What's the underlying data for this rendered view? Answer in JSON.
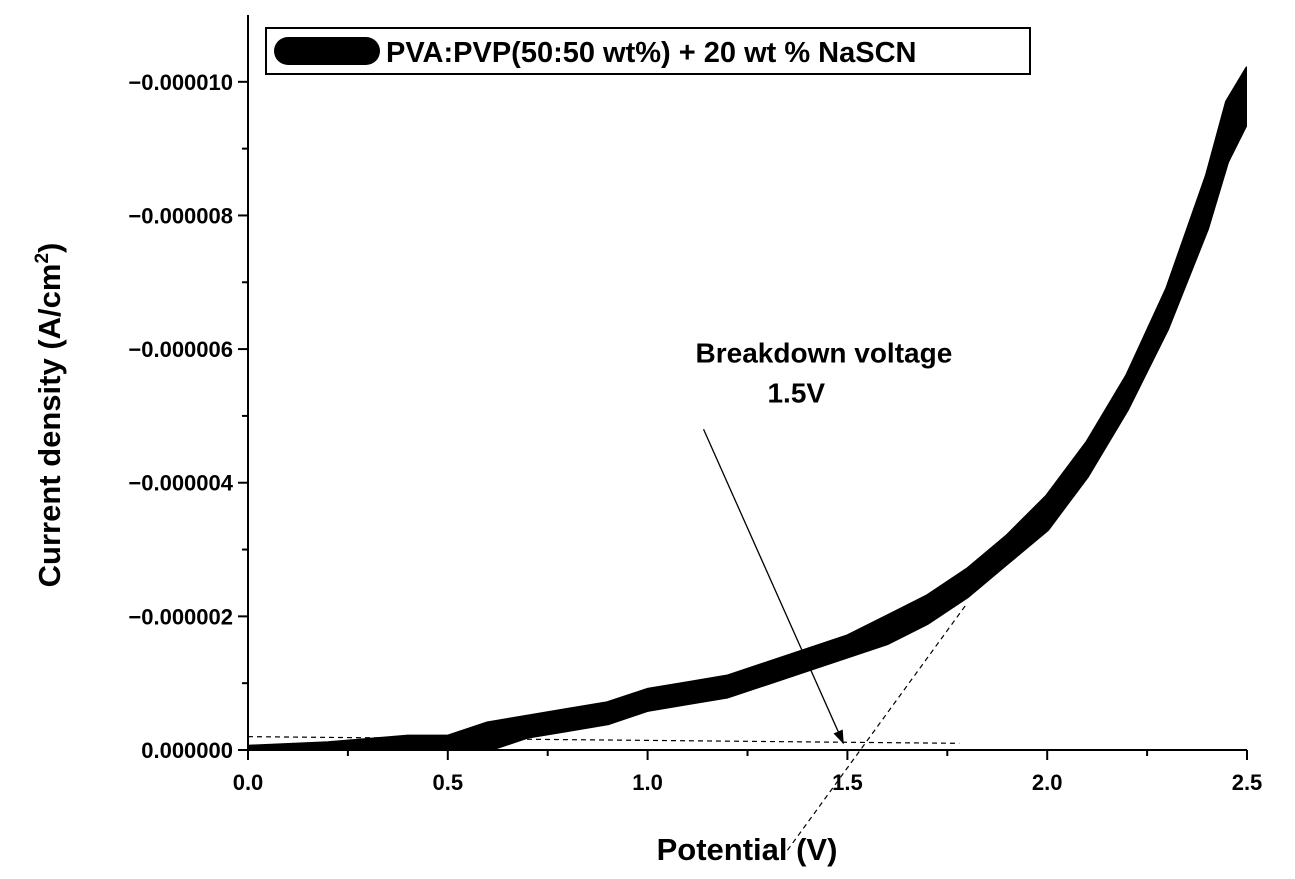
{
  "chart_data": {
    "type": "line",
    "xlabel": "Potential (V)",
    "ylabel": "Current density (A/cm",
    "ylabel_superscript": "2",
    "ylabel_close": ")",
    "xlim": [
      0.0,
      2.5
    ],
    "ylim": [
      0.0,
      1.1e-05
    ],
    "x_ticks": [
      {
        "value": 0.0,
        "label": "0.0"
      },
      {
        "value": 0.5,
        "label": "0.5"
      },
      {
        "value": 1.0,
        "label": "1.0"
      },
      {
        "value": 1.5,
        "label": "1.5"
      },
      {
        "value": 2.0,
        "label": "2.0"
      },
      {
        "value": 2.5,
        "label": "2.5"
      }
    ],
    "y_ticks": [
      {
        "value": 0.0,
        "label": "0.000000"
      },
      {
        "value": 2e-06,
        "label": "−0.000002"
      },
      {
        "value": 4e-06,
        "label": "−0.000004"
      },
      {
        "value": 6e-06,
        "label": "−0.000006"
      },
      {
        "value": 8e-06,
        "label": "−0.000008"
      },
      {
        "value": 1e-05,
        "label": "−0.000010"
      }
    ],
    "grid": false,
    "legend": {
      "placement": "top-left",
      "entries": [
        "PVA:PVP(50:50 wt%) + 20 wt % NaSCN"
      ]
    },
    "series": [
      {
        "name": "PVA:PVP(50:50 wt%) + 20 wt % NaSCN",
        "color": "#000000",
        "x": [
          0.0,
          0.2,
          0.4,
          0.5,
          0.6,
          0.7,
          0.8,
          0.9,
          1.0,
          1.1,
          1.2,
          1.3,
          1.4,
          1.5,
          1.6,
          1.7,
          1.8,
          1.9,
          2.0,
          2.1,
          2.2,
          2.3,
          2.4,
          2.45,
          2.5
        ],
        "upper": [
          5e-08,
          1e-07,
          2e-07,
          2e-07,
          4e-07,
          5e-07,
          6e-07,
          7e-07,
          9e-07,
          1e-06,
          1.1e-06,
          1.3e-06,
          1.5e-06,
          1.7e-06,
          2e-06,
          2.3e-06,
          2.7e-06,
          3.2e-06,
          3.8e-06,
          4.6e-06,
          5.6e-06,
          6.9e-06,
          8.6e-06,
          9.7e-06,
          1.02e-05
        ],
        "lower": [
          0.0,
          0.0,
          0.0,
          0.0,
          0.0,
          2e-07,
          3e-07,
          4e-07,
          6e-07,
          7e-07,
          8e-07,
          1e-06,
          1.2e-06,
          1.4e-06,
          1.6e-06,
          1.9e-06,
          2.3e-06,
          2.8e-06,
          3.3e-06,
          4.1e-06,
          5.1e-06,
          6.3e-06,
          7.8e-06,
          8.8e-06,
          9.4e-06
        ]
      }
    ],
    "annotations": [
      {
        "text": "Breakdown voltage",
        "x": 1.12,
        "y": 5.8e-06
      },
      {
        "text": "1.5V",
        "x": 1.3,
        "y": 5.2e-06
      },
      {
        "type": "arrow",
        "from": [
          1.14,
          4.8e-06
        ],
        "to": [
          1.49,
          1e-07
        ]
      },
      {
        "type": "dashed-line",
        "from": [
          0.0,
          2e-07
        ],
        "to": [
          1.78,
          1e-07
        ]
      },
      {
        "type": "dashed-line",
        "from": [
          1.35,
          -1.5e-06
        ],
        "to": [
          1.8,
          2.2e-06
        ]
      }
    ]
  }
}
